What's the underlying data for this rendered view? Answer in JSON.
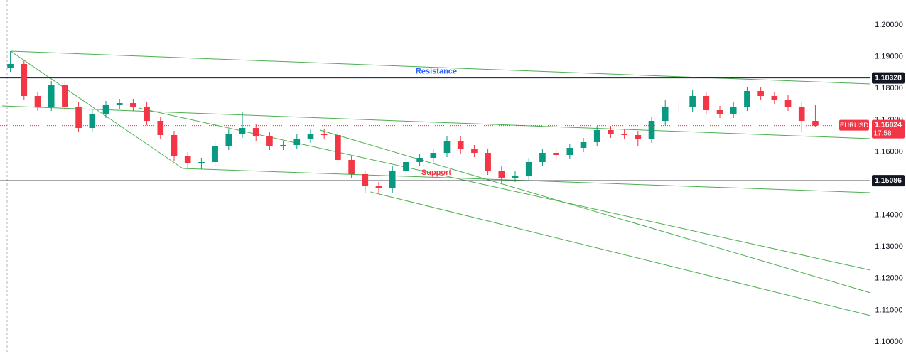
{
  "chart_data": {
    "type": "candlestick",
    "symbol": "EURUSD",
    "open": [
      1.18655,
      1.18767,
      1.17758,
      1.17422,
      1.18094,
      1.17422,
      1.16749,
      1.17198,
      1.17467,
      1.17534,
      1.17422,
      1.16973,
      1.16525,
      1.15852,
      1.15628,
      1.15673,
      1.16188,
      1.1657,
      1.16749,
      1.1648,
      1.16188,
      1.16211,
      1.16413,
      1.1657,
      1.16525,
      1.1574,
      1.15292,
      1.1491,
      1.14843,
      1.15404,
      1.15673,
      1.15807,
      1.15964,
      1.16345,
      1.16076,
      1.15964,
      1.15404,
      1.1518,
      1.15224,
      1.15673,
      1.15964,
      1.15897,
      1.16121,
      1.16301,
      1.16682,
      1.1657,
      1.16525,
      1.16413,
      1.16973,
      1.17422,
      1.174,
      1.17758,
      1.1731,
      1.17198,
      1.17422,
      1.17915,
      1.17758,
      1.17646,
      1.17422,
      1.16973
    ],
    "high": [
      1.19171,
      1.18902,
      1.17893,
      1.18229,
      1.18229,
      1.17556,
      1.17332,
      1.17601,
      1.17668,
      1.17668,
      1.17556,
      1.17108,
      1.16659,
      1.15986,
      1.15807,
      1.16323,
      1.16704,
      1.17265,
      1.16884,
      1.16614,
      1.16323,
      1.16547,
      1.16704,
      1.16704,
      1.16659,
      1.15875,
      1.15404,
      1.15045,
      1.15538,
      1.15807,
      1.15942,
      1.16099,
      1.1648,
      1.1648,
      1.16211,
      1.16099,
      1.15538,
      1.15404,
      1.15807,
      1.16099,
      1.16099,
      1.16256,
      1.16435,
      1.16816,
      1.16816,
      1.16704,
      1.16659,
      1.17108,
      1.17624,
      1.17556,
      1.1796,
      1.17893,
      1.17444,
      1.17556,
      1.1805,
      1.1805,
      1.17893,
      1.1778,
      1.17556,
      1.17467
    ],
    "low": [
      1.1852,
      1.17624,
      1.17287,
      1.17287,
      1.17287,
      1.16614,
      1.16614,
      1.17063,
      1.17332,
      1.17287,
      1.16839,
      1.1639,
      1.15718,
      1.15449,
      1.15449,
      1.15538,
      1.16054,
      1.16435,
      1.16345,
      1.16054,
      1.16054,
      1.16076,
      1.16278,
      1.1639,
      1.15606,
      1.15157,
      1.14709,
      1.14686,
      1.14709,
      1.15269,
      1.15538,
      1.15673,
      1.1583,
      1.15942,
      1.1583,
      1.15269,
      1.15,
      1.15045,
      1.1509,
      1.15538,
      1.15762,
      1.15762,
      1.15986,
      1.16166,
      1.16435,
      1.1639,
      1.16188,
      1.16278,
      1.16839,
      1.17265,
      1.17265,
      1.17175,
      1.17063,
      1.17063,
      1.17287,
      1.17624,
      1.17511,
      1.17287,
      1.16614,
      1.16794
    ],
    "close": [
      1.18767,
      1.17758,
      1.17422,
      1.18094,
      1.17422,
      1.16749,
      1.17198,
      1.17467,
      1.17534,
      1.17422,
      1.16973,
      1.16525,
      1.15852,
      1.15628,
      1.15673,
      1.16188,
      1.1657,
      1.16749,
      1.1648,
      1.16188,
      1.16211,
      1.16413,
      1.1657,
      1.16525,
      1.1574,
      1.15292,
      1.1491,
      1.14843,
      1.15404,
      1.15673,
      1.15807,
      1.15964,
      1.16345,
      1.16076,
      1.15964,
      1.15404,
      1.1518,
      1.15224,
      1.15673,
      1.15964,
      1.15897,
      1.16121,
      1.16301,
      1.16682,
      1.1657,
      1.16525,
      1.16413,
      1.16973,
      1.17422,
      1.174,
      1.17758,
      1.1731,
      1.17198,
      1.17422,
      1.17915,
      1.17758,
      1.17646,
      1.17422,
      1.16973,
      1.16824
    ],
    "up_color": "#089981",
    "down_color": "#f23645",
    "xlim": [
      -0.76,
      63.04
    ],
    "ylim": [
      1.09619,
      1.20785
    ],
    "yticks": [
      {
        "value": 1.1,
        "label": "1.10000"
      },
      {
        "value": 1.11,
        "label": "1.11000"
      },
      {
        "value": 1.12,
        "label": "1.12000"
      },
      {
        "value": 1.13,
        "label": "1.13000"
      },
      {
        "value": 1.14,
        "label": "1.14000"
      },
      {
        "value": 1.15,
        "label": "1.15000"
      },
      {
        "value": 1.16,
        "label": "1.16000"
      },
      {
        "value": 1.17,
        "label": "1.17000"
      },
      {
        "value": 1.18,
        "label": "1.18000"
      },
      {
        "value": 1.19,
        "label": "1.19000"
      },
      {
        "value": 1.2,
        "label": "1.20000"
      }
    ],
    "grid": false,
    "levels": [
      {
        "name": "Resistance",
        "value": 1.18328,
        "label_color": "#2962ff"
      },
      {
        "name": "Support",
        "value": 1.15086,
        "label_color": "#f23645"
      }
    ],
    "level_color": "#131722",
    "current_price": 1.16824,
    "countdown": "17:58",
    "current_color": "#f23645",
    "trendline_color": "#4caf50",
    "trendlines": [
      {
        "x": [
          0.02,
          63.04
        ],
        "y": [
          1.19171,
          1.18139
        ]
      },
      {
        "x": [
          -0.6,
          63.04
        ],
        "y": [
          1.17444,
          1.16413
        ]
      },
      {
        "x": [
          0.02,
          12.63
        ],
        "y": [
          1.19171,
          1.15471
        ]
      },
      {
        "x": [
          12.63,
          63.04
        ],
        "y": [
          1.15471,
          1.14709
        ]
      },
      {
        "x": [
          9.4,
          63.04
        ],
        "y": [
          1.17377,
          1.12265
        ]
      },
      {
        "x": [
          22.7,
          63.04
        ],
        "y": [
          1.16682,
          1.11547
        ]
      },
      {
        "x": [
          26.4,
          63.04
        ],
        "y": [
          1.14731,
          1.1083
        ]
      }
    ]
  }
}
